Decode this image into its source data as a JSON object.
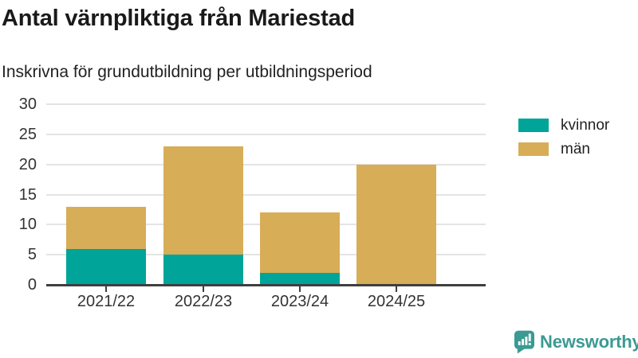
{
  "title": "Antal värnpliktiga från Mariestad",
  "subtitle": "Inskrivna för grundutbildning per utbildningsperiod",
  "colors": {
    "kvinnor": "#00a499",
    "man": "#d8ad57",
    "grid": "#e4e4e4",
    "axis": "#3f3f3f",
    "logo_teal": "#3b9a93"
  },
  "chart_data": {
    "type": "bar",
    "stacked": true,
    "title": "Antal värnpliktiga från Mariestad",
    "subtitle": "Inskrivna för grundutbildning per utbildningsperiod",
    "categories": [
      "2021/22",
      "2022/23",
      "2023/24",
      "2024/25"
    ],
    "series": [
      {
        "name": "kvinnor",
        "color": "#00a499",
        "values": [
          6,
          5,
          2,
          0
        ]
      },
      {
        "name": "män",
        "color": "#d8ad57",
        "values": [
          7,
          18,
          10,
          20
        ]
      }
    ],
    "totals": [
      13,
      23,
      12,
      20
    ],
    "xlabel": "",
    "ylabel": "",
    "ylim": [
      0,
      30
    ],
    "yticks": [
      0,
      5,
      10,
      15,
      20,
      25,
      30
    ],
    "grid": true,
    "legend_position": "right"
  },
  "legend": {
    "items": [
      {
        "label": "kvinnor",
        "color": "#00a499"
      },
      {
        "label": "män",
        "color": "#d8ad57"
      }
    ]
  },
  "footer": {
    "brand": "Newsworthy"
  }
}
